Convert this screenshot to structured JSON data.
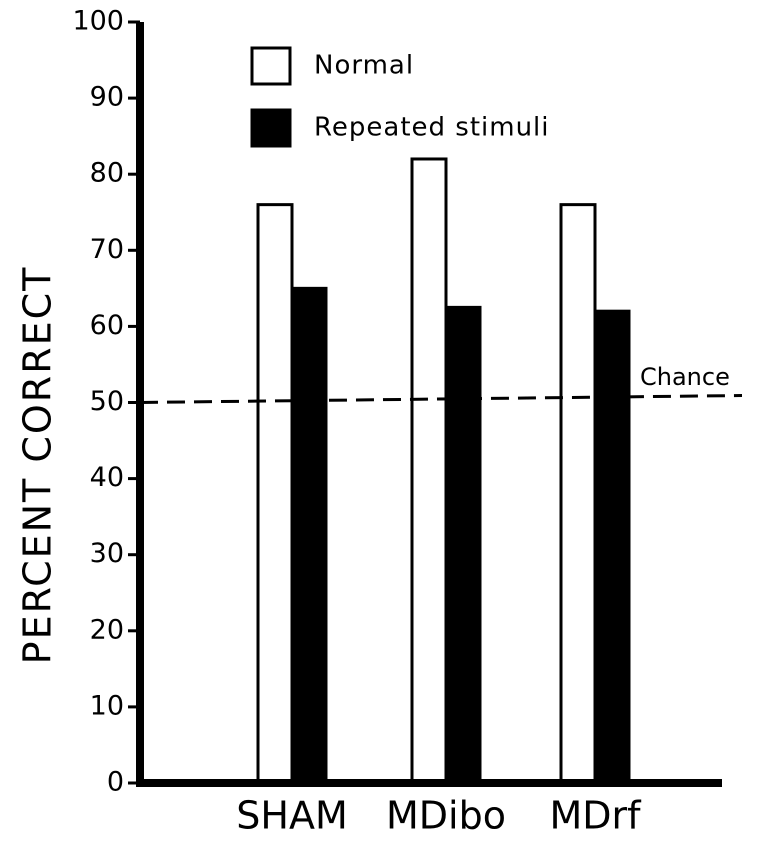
{
  "chart_data": {
    "type": "bar",
    "y_label": "PERCENT CORRECT",
    "categories": [
      "SHAM",
      "MDibo",
      "MDrf"
    ],
    "series": [
      {
        "name": "Normal",
        "color": "#ffffff",
        "values": [
          76,
          82,
          76
        ]
      },
      {
        "name": "Repeated stimuli",
        "color": "#000000",
        "values": [
          65,
          62.5,
          62
        ]
      }
    ],
    "ylim": [
      0,
      100
    ],
    "yticks": [
      0,
      10,
      20,
      30,
      40,
      50,
      60,
      70,
      80,
      90,
      100
    ],
    "reference_line": {
      "value": 50,
      "label": "Chance"
    },
    "legend": "top-left"
  }
}
